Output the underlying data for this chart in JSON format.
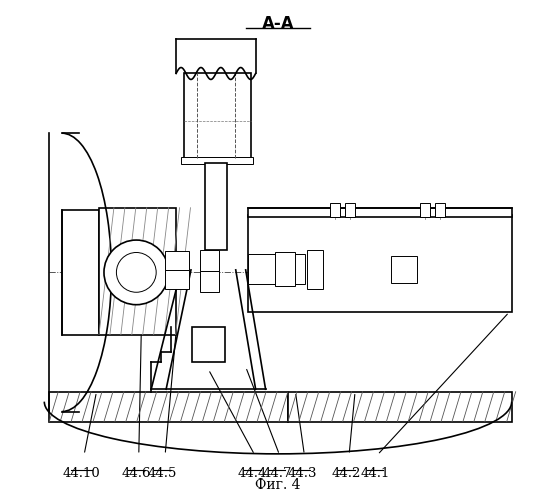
{
  "title": "А-А",
  "fig_label": "Фиг. 4",
  "labels": [
    "44.10",
    "44.6",
    "44.5",
    "44.4",
    "44.7",
    "44.3",
    "44.2",
    "44.1"
  ],
  "bg_color": "#ffffff",
  "line_color": "#000000",
  "title_fontsize": 12,
  "label_fontsize": 9.5,
  "fig_label_fontsize": 10
}
